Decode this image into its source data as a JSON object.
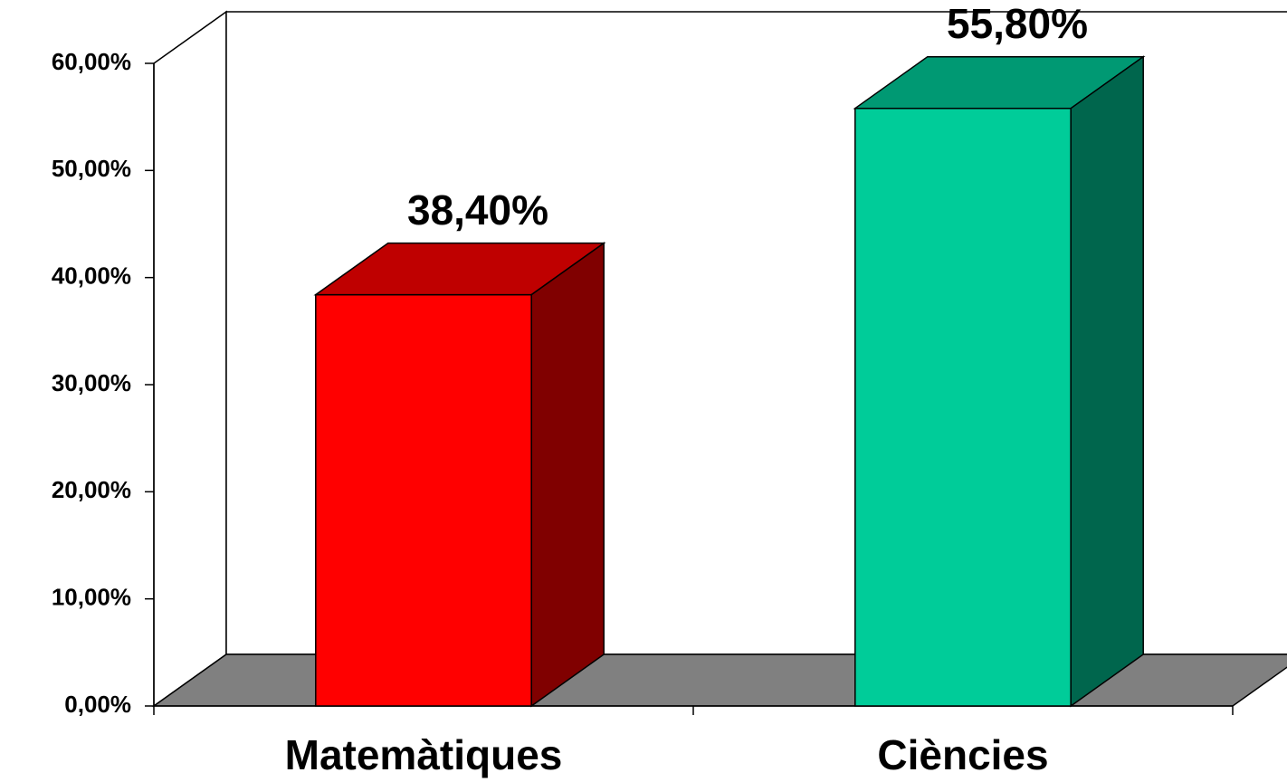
{
  "chart_data": {
    "type": "bar3d",
    "categories": [
      "Matemàtiques",
      "Ciències"
    ],
    "values": [
      38.4,
      55.8
    ],
    "value_labels": [
      "38,40%",
      "55,80%"
    ],
    "colors": [
      "#ff0000",
      "#00cc99"
    ],
    "ylim": [
      0,
      60
    ],
    "yticks": [
      {
        "value": 0,
        "label": "0,00%"
      },
      {
        "value": 10,
        "label": "10,00%"
      },
      {
        "value": 20,
        "label": "20,00%"
      },
      {
        "value": 30,
        "label": "30,00%"
      },
      {
        "value": 40,
        "label": "40,00%"
      },
      {
        "value": 50,
        "label": "50,00%"
      },
      {
        "value": 60,
        "label": "60,00%"
      }
    ]
  }
}
